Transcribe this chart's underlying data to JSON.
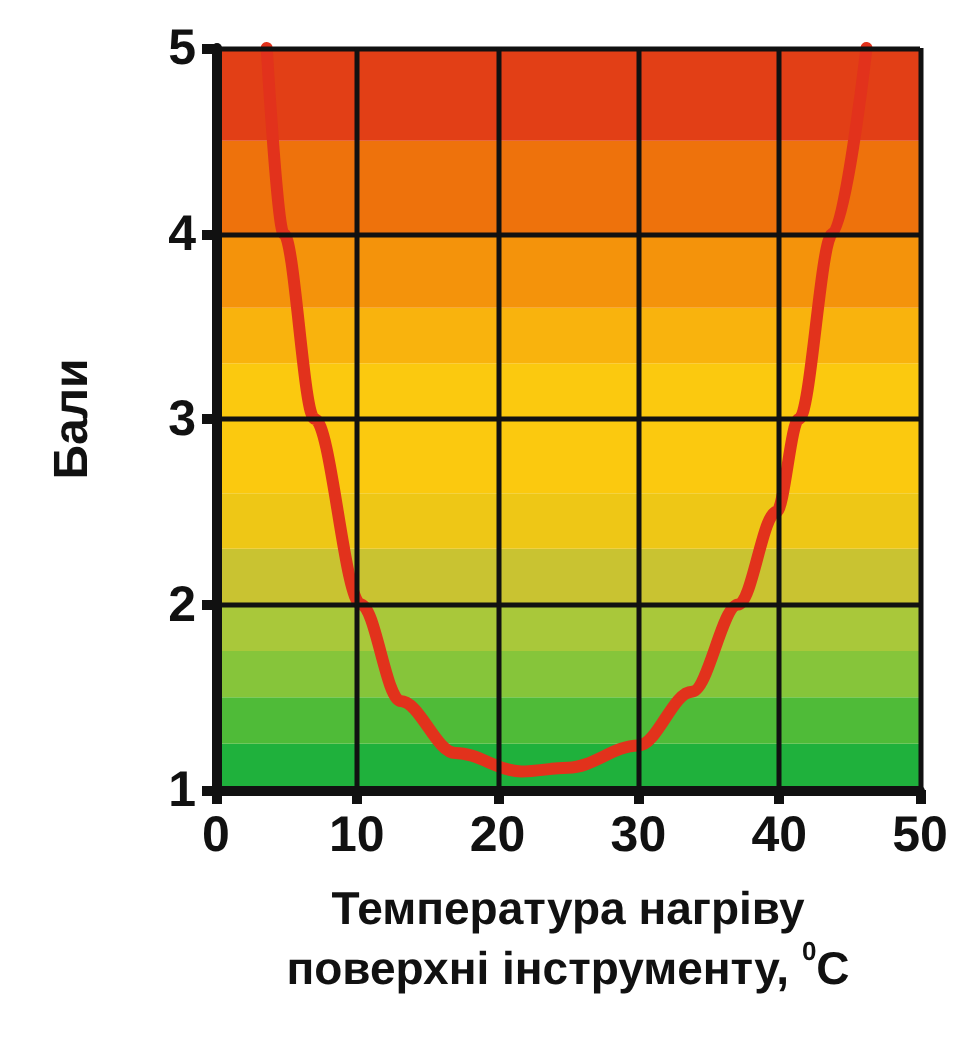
{
  "chart_data": {
    "type": "line",
    "xlabel": "Температура нагріву\nповерхні інструменту, $^{0}$C",
    "ylabel": "Бали",
    "xlim": [
      0,
      50
    ],
    "xticks": [
      0,
      10,
      20,
      30,
      40,
      50
    ],
    "ylim": [
      1,
      5
    ],
    "yticks": [
      1,
      2,
      3,
      4,
      5
    ],
    "grid": true,
    "marker": "none",
    "line_style": "solid",
    "series": [
      {
        "color": "#e2321c",
        "x": [
          3.6,
          4.8,
          7.0,
          10.3,
          13.1,
          17,
          21.7,
          25,
          30,
          33.8,
          37.1,
          39.8,
          41.4,
          43.8,
          46.2
        ],
        "values": [
          5,
          4,
          3,
          2,
          1.48,
          1.2,
          1.1,
          1.12,
          1.24,
          1.53,
          2,
          2.5,
          3,
          4,
          5
        ]
      }
    ],
    "bands": [
      {
        "axis": "y",
        "from": 1,
        "to": 1.25,
        "color": "#1fb13c"
      },
      {
        "axis": "y",
        "from": 1.25,
        "to": 1.5,
        "color": "#4fbb38"
      },
      {
        "axis": "y",
        "from": 1.5,
        "to": 1.75,
        "color": "#86c53a"
      },
      {
        "axis": "y",
        "from": 1.75,
        "to": 2,
        "color": "#a9c83a"
      },
      {
        "axis": "y",
        "from": 2,
        "to": 2.3,
        "color": "#c9c331"
      },
      {
        "axis": "y",
        "from": 2.3,
        "to": 2.6,
        "color": "#eec716"
      },
      {
        "axis": "y",
        "from": 2.6,
        "to": 3.3,
        "color": "#fbc90f"
      },
      {
        "axis": "y",
        "from": 3.3,
        "to": 3.6,
        "color": "#f9b30d"
      },
      {
        "axis": "y",
        "from": 3.6,
        "to": 4,
        "color": "#f4930b"
      },
      {
        "axis": "y",
        "from": 4,
        "to": 4.5,
        "color": "#ee720c"
      },
      {
        "axis": "y",
        "from": 4.5,
        "to": 5,
        "color": "#e23f16"
      }
    ]
  }
}
